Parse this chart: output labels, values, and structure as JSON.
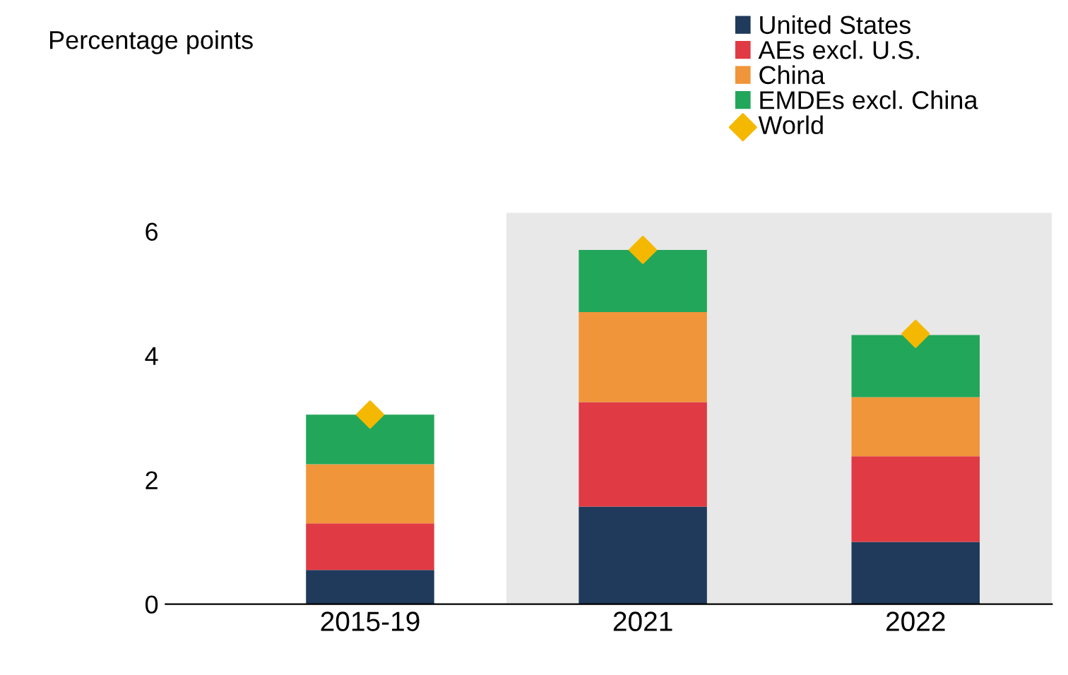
{
  "chart_data": {
    "type": "bar",
    "stacked": true,
    "annotations": [
      "Percentage points"
    ],
    "categories": [
      "2015-19",
      "2021",
      "2022"
    ],
    "series": [
      {
        "name": "United States",
        "color": "#1f3a5a",
        "values": [
          0.55,
          1.57,
          1.0
        ]
      },
      {
        "name": "AEs excl. U.S.",
        "color": "#e03a44",
        "values": [
          0.75,
          1.68,
          1.38
        ]
      },
      {
        "name": "China",
        "color": "#f0953a",
        "values": [
          0.95,
          1.45,
          0.95
        ]
      },
      {
        "name": "EMDEs excl. China",
        "color": "#22a65a",
        "values": [
          0.8,
          1.0,
          1.0
        ]
      },
      {
        "name": "World",
        "type": "scatter",
        "color": "#f5b800",
        "values": [
          3.05,
          5.7,
          4.35
        ]
      }
    ],
    "marker": "diamond",
    "ylim": [
      0,
      6.3
    ],
    "yticks": [
      0,
      2,
      4,
      6
    ],
    "grid": false,
    "legend": "top right",
    "bands": [
      {
        "axis": "x",
        "from": "2021",
        "to": "2022",
        "color": "#e8e8e8"
      }
    ]
  }
}
